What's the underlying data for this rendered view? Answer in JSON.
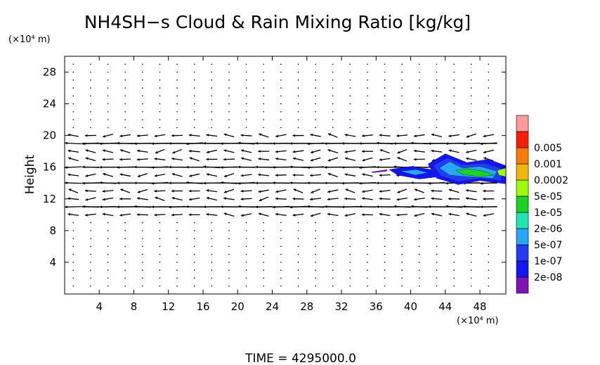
{
  "chart_data": {
    "type": "contour+vector",
    "title": "NH4SH−s Cloud & Rain Mixing Ratio [kg/kg]",
    "ylabel": "Height",
    "yunit": "(×10⁴ m)",
    "xunit": "(×10⁴ m)",
    "xlim": [
      0,
      51
    ],
    "ylim": [
      0,
      30
    ],
    "xticks": [
      "4",
      "8",
      "12",
      "16",
      "20",
      "24",
      "28",
      "32",
      "36",
      "40",
      "44",
      "48"
    ],
    "yticks": [
      "4",
      "8",
      "12",
      "16",
      "20",
      "24",
      "28"
    ],
    "colorbar": {
      "levels": [
        "2e-08",
        "1e-07",
        "5e-07",
        "2e-06",
        "1e-05",
        "5e-05",
        "0.0002",
        "0.001",
        "0.005"
      ],
      "colors": [
        "#7f12b8",
        "#1414ff",
        "#1f3cff",
        "#25a7ff",
        "#1de8b0",
        "#19d421",
        "#9bff00",
        "#f2b800",
        "#ff7a00",
        "#ff1c00",
        "#ff9a9a"
      ]
    },
    "cloud_region": {
      "x_range": [
        36,
        51
      ],
      "y_range": [
        13.5,
        17.5
      ],
      "dominant_levels": [
        "1e-07",
        "5e-07",
        "2e-06",
        "1e-05",
        "5e-05"
      ]
    },
    "wind_jets": [
      {
        "y": 19.0,
        "direction": "westward"
      },
      {
        "y": 16.0,
        "direction": "westward"
      },
      {
        "y": 14.0,
        "direction": "westward"
      },
      {
        "y": 11.0,
        "direction": "westward"
      }
    ],
    "grid": false
  },
  "footer": {
    "time_label": "TIME  =  4295000.0"
  }
}
